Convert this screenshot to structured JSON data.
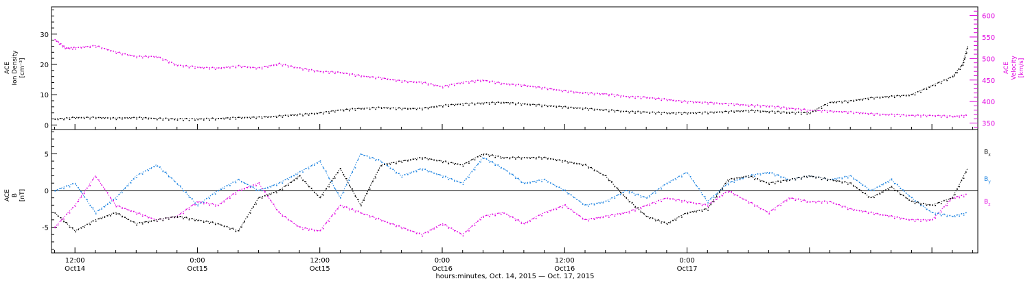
{
  "chart_data": [
    {
      "type": "scatter",
      "panel": "top",
      "ylabel_left": [
        "ACE",
        "Ion Density",
        "[cm⁻³]"
      ],
      "ylabel_right": [
        "ACE",
        "Velocity",
        "[km/s]"
      ],
      "ylim_left": [
        -1.5,
        39
      ],
      "left_ticks": [
        0,
        10,
        20,
        30
      ],
      "ylim_right": [
        335,
        620
      ],
      "right_ticks": [
        350,
        400,
        450,
        500,
        550,
        600
      ],
      "x_units": "hours since Oct 14 2015 00:00",
      "xlim": [
        9.7,
        100.5
      ],
      "series": [
        {
          "name": "density",
          "axis": "left",
          "color": "#000000",
          "x": [
            10,
            12,
            14,
            16,
            18,
            20,
            22,
            24,
            26,
            28,
            30,
            32,
            34,
            36,
            38,
            40,
            42,
            44,
            46,
            48,
            50,
            52,
            54,
            56,
            58,
            60,
            62,
            64,
            66,
            68,
            70,
            72,
            74,
            76,
            78,
            80,
            82,
            84,
            86,
            88,
            90,
            92,
            94,
            96,
            98,
            99,
            99.5
          ],
          "y": [
            2,
            2.5,
            2.5,
            2.3,
            2.5,
            2.2,
            2,
            2,
            2.2,
            2.5,
            2.6,
            3,
            3.5,
            4,
            5,
            5.5,
            5.8,
            5.5,
            5.5,
            6.5,
            7,
            7.3,
            7.5,
            7,
            6.5,
            6,
            5.5,
            5,
            4.5,
            4.3,
            4,
            4,
            4.2,
            4.5,
            4.8,
            4.5,
            4.2,
            4,
            7.5,
            8,
            9,
            9.5,
            10,
            13,
            16,
            20,
            26
          ]
        },
        {
          "name": "velocity",
          "axis": "right",
          "color": "#e000e0",
          "x": [
            10,
            11,
            12,
            14,
            16,
            18,
            20,
            22,
            24,
            26,
            28,
            30,
            32,
            34,
            36,
            38,
            40,
            42,
            44,
            46,
            48,
            50,
            52,
            54,
            56,
            58,
            60,
            62,
            64,
            66,
            68,
            70,
            72,
            74,
            76,
            78,
            80,
            82,
            84,
            86,
            88,
            90,
            92,
            94,
            96,
            98,
            99.5
          ],
          "y": [
            545,
            525,
            525,
            530,
            515,
            505,
            505,
            485,
            480,
            478,
            483,
            478,
            488,
            478,
            470,
            468,
            460,
            455,
            448,
            445,
            435,
            445,
            450,
            442,
            438,
            432,
            425,
            420,
            418,
            412,
            410,
            405,
            400,
            398,
            395,
            392,
            390,
            385,
            380,
            378,
            376,
            372,
            370,
            368,
            368,
            366,
            368
          ]
        }
      ]
    },
    {
      "type": "scatter",
      "panel": "bottom",
      "ylabel": [
        "ACE",
        "B",
        "[nT]"
      ],
      "ylim": [
        -8.5,
        8.3
      ],
      "y_ticks": [
        -5,
        0,
        5
      ],
      "zero_line": true,
      "x_units": "hours since Oct 14 2015 00:00",
      "xlim": [
        9.7,
        100.5
      ],
      "legend_position": "right",
      "series": [
        {
          "name": "Bx",
          "color": "#000000",
          "x": [
            10,
            12,
            14,
            16,
            18,
            20,
            22,
            24,
            26,
            28,
            30,
            32,
            34,
            36,
            38,
            40,
            42,
            44,
            46,
            48,
            50,
            52,
            54,
            56,
            58,
            60,
            62,
            64,
            66,
            68,
            70,
            72,
            74,
            76,
            78,
            80,
            82,
            84,
            86,
            88,
            90,
            92,
            94,
            96,
            98,
            99.5
          ],
          "y": [
            -3,
            -5.5,
            -4,
            -3,
            -4.5,
            -4,
            -3.5,
            -4,
            -4.5,
            -5.5,
            -1,
            0,
            2,
            -1,
            3,
            -2,
            3.5,
            4,
            4.5,
            4,
            3.5,
            5,
            4.5,
            4.5,
            4.5,
            4,
            3.5,
            2,
            -1,
            -3.5,
            -4.5,
            -3,
            -2.5,
            1.5,
            2,
            1,
            1.5,
            2,
            1.5,
            1,
            -1,
            0.5,
            -1.5,
            -2,
            -1,
            3
          ]
        },
        {
          "name": "By",
          "color": "#1a82e0",
          "x": [
            10,
            12,
            14,
            16,
            18,
            20,
            22,
            24,
            26,
            28,
            30,
            32,
            34,
            36,
            38,
            40,
            42,
            44,
            46,
            48,
            50,
            52,
            54,
            56,
            58,
            60,
            62,
            64,
            66,
            68,
            70,
            72,
            74,
            76,
            78,
            80,
            82,
            84,
            86,
            88,
            90,
            92,
            94,
            96,
            98,
            99.5
          ],
          "y": [
            0,
            1,
            -3,
            -1,
            2,
            3.5,
            1,
            -2,
            0,
            1.5,
            0,
            1,
            2.5,
            4,
            -1,
            5,
            4,
            2,
            3,
            2,
            1,
            4.5,
            3,
            1,
            1.5,
            0,
            -2,
            -1.5,
            0,
            -1,
            1,
            2.5,
            -1.5,
            1,
            2,
            2.5,
            1.5,
            2,
            1.5,
            2,
            0,
            1.5,
            -1,
            -3,
            -3.5,
            -3
          ]
        },
        {
          "name": "Bz",
          "color": "#e000e0",
          "x": [
            10,
            12,
            14,
            16,
            18,
            20,
            22,
            24,
            26,
            28,
            30,
            32,
            34,
            36,
            38,
            40,
            42,
            44,
            46,
            48,
            50,
            52,
            54,
            56,
            58,
            60,
            62,
            64,
            66,
            68,
            70,
            72,
            74,
            76,
            78,
            80,
            82,
            84,
            86,
            88,
            90,
            92,
            94,
            96,
            98,
            99.5
          ],
          "y": [
            -5,
            -2,
            2,
            -2,
            -3,
            -4,
            -3.5,
            -1.5,
            -2,
            0,
            1,
            -3,
            -5,
            -5.5,
            -2,
            -3,
            -4,
            -5,
            -6,
            -4.5,
            -6,
            -3.5,
            -3,
            -4.5,
            -3,
            -2,
            -4,
            -3.5,
            -3,
            -2,
            -1,
            -1.5,
            -2,
            0,
            -1.5,
            -3,
            -1,
            -1.5,
            -1.5,
            -2.5,
            -3,
            -3.5,
            -4,
            -4,
            -1,
            -0.5
          ]
        }
      ]
    }
  ],
  "legend": {
    "bx_base": "B",
    "bx_sub": "x",
    "by_base": "B",
    "by_sub": "y",
    "bz_base": "B",
    "bz_sub": "z"
  },
  "x_axis": {
    "xlabel": "hours:minutes, Oct. 14, 2015 — Oct. 17, 2015",
    "ticks": [
      {
        "x": 12,
        "time": "12:00",
        "date": "Oct14"
      },
      {
        "x": 24,
        "time": "0:00",
        "date": "Oct15"
      },
      {
        "x": 36,
        "time": "12:00",
        "date": "Oct15"
      },
      {
        "x": 48,
        "time": "0:00",
        "date": "Oct16"
      },
      {
        "x": 60,
        "time": "12:00",
        "date": "Oct16"
      },
      {
        "x": 72,
        "time": "0:00",
        "date": "Oct17"
      }
    ]
  }
}
